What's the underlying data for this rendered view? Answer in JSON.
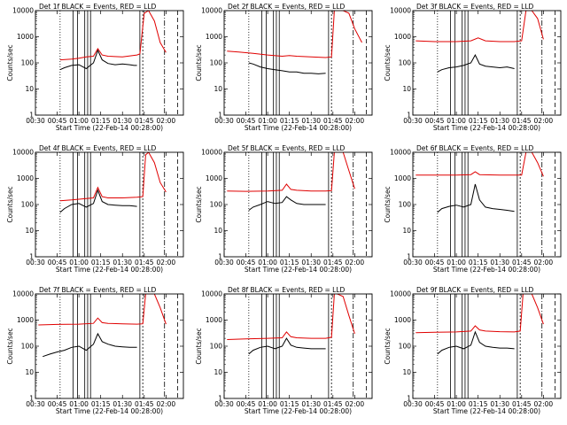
{
  "figure": {
    "colors": {
      "events": "#000000",
      "lld": "#e00000",
      "background": "#ffffff",
      "axes": "#000000"
    }
  },
  "chart_data": [
    {
      "type": "line",
      "title": "Det 1f BLACK = Events, RED = LLD",
      "xlabel": "Start Time (22-Feb-14 00:28:00)",
      "ylabel": "Counts/sec",
      "yscale": "log",
      "ylim": [
        1,
        10000
      ],
      "xlim": [
        "00:30",
        "02:12"
      ],
      "xticks": [
        "00:30",
        "00:45",
        "01:00",
        "01:15",
        "01:30",
        "01:45",
        "02:00"
      ],
      "yticks": [
        "1",
        "10",
        "100",
        "1000",
        "10000"
      ],
      "series": [
        {
          "name": "Events",
          "x": [
            "00:47",
            "00:50",
            "00:55",
            "01:00",
            "01:05",
            "01:10",
            "01:13",
            "01:16",
            "01:20",
            "01:25",
            "01:30",
            "01:35",
            "01:38",
            "01:40"
          ],
          "y": [
            55,
            65,
            80,
            85,
            60,
            100,
            300,
            130,
            95,
            85,
            90,
            85,
            80,
            80
          ]
        },
        {
          "name": "LLD",
          "x": [
            "00:47",
            "00:55",
            "01:00",
            "01:05",
            "01:10",
            "01:13",
            "01:16",
            "01:20",
            "01:30",
            "01:40",
            "01:42",
            "01:45",
            "01:48",
            "01:52",
            "01:56",
            "02:00"
          ],
          "y": [
            130,
            140,
            150,
            170,
            180,
            350,
            200,
            180,
            170,
            200,
            220,
            8000,
            10000,
            4000,
            600,
            250
          ]
        }
      ]
    },
    {
      "type": "line",
      "title": "Det 2f BLACK = Events, RED = LLD",
      "xlabel": "Start Time (22-Feb-14 00:28:00)",
      "ylabel": "Counts/sec",
      "yscale": "log",
      "ylim": [
        1,
        10000
      ],
      "xlim": [
        "00:30",
        "02:12"
      ],
      "xticks": [
        "00:30",
        "00:45",
        "01:00",
        "01:15",
        "01:30",
        "01:45",
        "02:00"
      ],
      "yticks": [
        "1",
        "10",
        "100",
        "1000",
        "10000"
      ],
      "series": [
        {
          "name": "Events",
          "x": [
            "00:47",
            "00:50",
            "00:55",
            "01:00",
            "01:05",
            "01:10",
            "01:15",
            "01:20",
            "01:25",
            "01:30",
            "01:35",
            "01:40"
          ],
          "y": [
            100,
            90,
            70,
            60,
            55,
            50,
            45,
            45,
            40,
            40,
            38,
            40
          ]
        },
        {
          "name": "LLD",
          "x": [
            "00:32",
            "00:40",
            "00:50",
            "01:00",
            "01:10",
            "01:15",
            "01:20",
            "01:30",
            "01:40",
            "01:44",
            "01:46",
            "01:48",
            "01:52",
            "01:56",
            "02:00",
            "02:05"
          ],
          "y": [
            280,
            260,
            230,
            200,
            180,
            190,
            180,
            170,
            160,
            170,
            10000,
            10000,
            10000,
            8000,
            2000,
            600
          ]
        }
      ]
    },
    {
      "type": "line",
      "title": "Det 3f BLACK = Events, RED = LLD",
      "xlabel": "Start Time (22-Feb-14 00:28:00)",
      "ylabel": "Counts/sec",
      "yscale": "log",
      "ylim": [
        1,
        10000
      ],
      "xlim": [
        "00:30",
        "02:12"
      ],
      "xticks": [
        "00:30",
        "00:45",
        "01:00",
        "01:15",
        "01:30",
        "01:45",
        "02:00"
      ],
      "yticks": [
        "1",
        "10",
        "100",
        "1000",
        "10000"
      ],
      "series": [
        {
          "name": "Events",
          "x": [
            "00:47",
            "00:50",
            "00:55",
            "01:00",
            "01:05",
            "01:10",
            "01:13",
            "01:16",
            "01:20",
            "01:25",
            "01:30",
            "01:35",
            "01:40"
          ],
          "y": [
            45,
            55,
            65,
            70,
            80,
            100,
            200,
            90,
            75,
            70,
            65,
            70,
            60
          ]
        },
        {
          "name": "LLD",
          "x": [
            "00:32",
            "00:45",
            "01:00",
            "01:10",
            "01:15",
            "01:20",
            "01:30",
            "01:40",
            "01:45",
            "01:48",
            "01:52",
            "01:56",
            "02:00"
          ],
          "y": [
            700,
            650,
            650,
            700,
            900,
            700,
            650,
            650,
            700,
            10000,
            10000,
            5000,
            800
          ]
        }
      ]
    },
    {
      "type": "line",
      "title": "Det 4f BLACK = Events, RED = LLD",
      "xlabel": "Start Time (22-Feb-14 00:28:00)",
      "ylabel": "Counts/sec",
      "yscale": "log",
      "ylim": [
        1,
        10000
      ],
      "xlim": [
        "00:30",
        "02:12"
      ],
      "xticks": [
        "00:30",
        "00:45",
        "01:00",
        "01:15",
        "01:30",
        "01:45",
        "02:00"
      ],
      "yticks": [
        "1",
        "10",
        "100",
        "1000",
        "10000"
      ],
      "series": [
        {
          "name": "Events",
          "x": [
            "00:47",
            "00:50",
            "00:55",
            "01:00",
            "01:05",
            "01:10",
            "01:13",
            "01:16",
            "01:20",
            "01:25",
            "01:30",
            "01:35",
            "01:40"
          ],
          "y": [
            50,
            70,
            100,
            110,
            80,
            110,
            350,
            130,
            100,
            95,
            90,
            90,
            85
          ]
        },
        {
          "name": "LLD",
          "x": [
            "00:47",
            "00:55",
            "01:00",
            "01:05",
            "01:10",
            "01:13",
            "01:16",
            "01:20",
            "01:30",
            "01:40",
            "01:44",
            "01:46",
            "01:48",
            "01:52",
            "01:56",
            "02:00"
          ],
          "y": [
            140,
            150,
            160,
            170,
            180,
            450,
            200,
            180,
            180,
            190,
            200,
            8000,
            10000,
            4000,
            700,
            300
          ]
        }
      ]
    },
    {
      "type": "line",
      "title": "Det 5f BLACK = Events, RED = LLD",
      "xlabel": "Start Time (22-Feb-14 00:28:00)",
      "ylabel": "Counts/sec",
      "yscale": "log",
      "ylim": [
        1,
        10000
      ],
      "xlim": [
        "00:30",
        "02:12"
      ],
      "xticks": [
        "00:30",
        "00:45",
        "01:00",
        "01:15",
        "01:30",
        "01:45",
        "02:00"
      ],
      "yticks": [
        "1",
        "10",
        "100",
        "1000",
        "10000"
      ],
      "series": [
        {
          "name": "Events",
          "x": [
            "00:47",
            "00:50",
            "00:55",
            "01:00",
            "01:05",
            "01:10",
            "01:13",
            "01:16",
            "01:20",
            "01:25",
            "01:30",
            "01:35",
            "01:40"
          ],
          "y": [
            60,
            80,
            100,
            130,
            110,
            120,
            200,
            150,
            110,
            100,
            100,
            100,
            100
          ]
        },
        {
          "name": "LLD",
          "x": [
            "00:32",
            "00:45",
            "01:00",
            "01:10",
            "01:13",
            "01:16",
            "01:20",
            "01:30",
            "01:40",
            "01:44",
            "01:46",
            "01:48",
            "01:52",
            "01:56",
            "02:00"
          ],
          "y": [
            330,
            320,
            330,
            350,
            600,
            380,
            350,
            330,
            330,
            340,
            10000,
            10000,
            10000,
            2000,
            400
          ]
        }
      ]
    },
    {
      "type": "line",
      "title": "Det 6f BLACK = Events, RED = LLD",
      "xlabel": "Start Time (22-Feb-14 00:28:00)",
      "ylabel": "Counts/sec",
      "yscale": "log",
      "ylim": [
        1,
        10000
      ],
      "xlim": [
        "00:30",
        "02:12"
      ],
      "xticks": [
        "00:30",
        "00:45",
        "01:00",
        "01:15",
        "01:30",
        "01:45",
        "02:00"
      ],
      "yticks": [
        "1",
        "10",
        "100",
        "1000",
        "10000"
      ],
      "series": [
        {
          "name": "Events",
          "x": [
            "00:47",
            "00:50",
            "00:55",
            "01:00",
            "01:05",
            "01:10",
            "01:13",
            "01:16",
            "01:20",
            "01:25",
            "01:30",
            "01:35",
            "01:40"
          ],
          "y": [
            50,
            70,
            85,
            95,
            80,
            100,
            600,
            150,
            80,
            70,
            65,
            60,
            55
          ]
        },
        {
          "name": "LLD",
          "x": [
            "00:32",
            "00:45",
            "01:00",
            "01:10",
            "01:13",
            "01:16",
            "01:30",
            "01:40",
            "01:45",
            "01:48",
            "01:52",
            "01:56",
            "02:00"
          ],
          "y": [
            1350,
            1350,
            1350,
            1400,
            1800,
            1400,
            1350,
            1350,
            1350,
            10000,
            10000,
            4000,
            1200
          ]
        }
      ]
    },
    {
      "type": "line",
      "title": "Det 7f BLACK = Events, RED = LLD",
      "xlabel": "Start Time (22-Feb-14 00:28:00)",
      "ylabel": "Counts/sec",
      "yscale": "log",
      "ylim": [
        1,
        10000
      ],
      "xlim": [
        "00:30",
        "02:12"
      ],
      "xticks": [
        "00:30",
        "00:45",
        "01:00",
        "01:15",
        "01:30",
        "01:45",
        "02:00"
      ],
      "yticks": [
        "1",
        "10",
        "100",
        "1000",
        "10000"
      ],
      "series": [
        {
          "name": "Events",
          "x": [
            "00:35",
            "00:40",
            "00:45",
            "00:50",
            "00:55",
            "01:00",
            "01:05",
            "01:10",
            "01:13",
            "01:16",
            "01:20",
            "01:25",
            "01:30",
            "01:35",
            "01:40"
          ],
          "y": [
            40,
            50,
            60,
            70,
            90,
            100,
            70,
            120,
            300,
            150,
            120,
            100,
            95,
            90,
            90
          ]
        },
        {
          "name": "LLD",
          "x": [
            "00:32",
            "00:45",
            "01:00",
            "01:10",
            "01:13",
            "01:16",
            "01:20",
            "01:30",
            "01:40",
            "01:44",
            "01:46",
            "01:48",
            "01:52",
            "01:56",
            "02:00"
          ],
          "y": [
            650,
            680,
            700,
            750,
            1200,
            800,
            750,
            720,
            700,
            720,
            10000,
            10000,
            10000,
            3000,
            700
          ]
        }
      ]
    },
    {
      "type": "line",
      "title": "Det 8f BLACK = Events, RED = LLD",
      "xlabel": "Start Time (22-Feb-14 00:28:00)",
      "ylabel": "Counts/sec",
      "yscale": "log",
      "ylim": [
        1,
        10000
      ],
      "xlim": [
        "00:30",
        "02:12"
      ],
      "xticks": [
        "00:30",
        "00:45",
        "01:00",
        "01:15",
        "01:30",
        "01:45",
        "02:00"
      ],
      "yticks": [
        "1",
        "10",
        "100",
        "1000",
        "10000"
      ],
      "series": [
        {
          "name": "Events",
          "x": [
            "00:47",
            "00:50",
            "00:55",
            "01:00",
            "01:05",
            "01:10",
            "01:13",
            "01:16",
            "01:20",
            "01:25",
            "01:30",
            "01:35",
            "01:40"
          ],
          "y": [
            50,
            70,
            90,
            100,
            80,
            100,
            200,
            110,
            90,
            85,
            80,
            80,
            80
          ]
        },
        {
          "name": "LLD",
          "x": [
            "00:32",
            "00:45",
            "01:00",
            "01:10",
            "01:13",
            "01:16",
            "01:20",
            "01:30",
            "01:40",
            "01:44",
            "01:46",
            "01:48",
            "01:52",
            "01:56",
            "02:00"
          ],
          "y": [
            180,
            190,
            200,
            210,
            350,
            230,
            210,
            200,
            200,
            220,
            10000,
            10000,
            8000,
            1500,
            300
          ]
        }
      ]
    },
    {
      "type": "line",
      "title": "Det 9f BLACK = Events, RED = LLD",
      "xlabel": "Start Time (22-Feb-14 00:28:00)",
      "ylabel": "Counts/sec",
      "yscale": "log",
      "ylim": [
        1,
        10000
      ],
      "xlim": [
        "00:30",
        "02:12"
      ],
      "xticks": [
        "00:30",
        "00:45",
        "01:00",
        "01:15",
        "01:30",
        "01:45",
        "02:00"
      ],
      "yticks": [
        "1",
        "10",
        "100",
        "1000",
        "10000"
      ],
      "series": [
        {
          "name": "Events",
          "x": [
            "00:47",
            "00:50",
            "00:55",
            "01:00",
            "01:05",
            "01:10",
            "01:13",
            "01:16",
            "01:20",
            "01:25",
            "01:30",
            "01:35",
            "01:40"
          ],
          "y": [
            50,
            70,
            90,
            100,
            80,
            110,
            350,
            140,
            100,
            90,
            85,
            85,
            80
          ]
        },
        {
          "name": "LLD",
          "x": [
            "00:32",
            "00:45",
            "01:00",
            "01:10",
            "01:13",
            "01:16",
            "01:20",
            "01:30",
            "01:40",
            "01:44",
            "01:46",
            "01:48",
            "01:52",
            "01:56",
            "02:00"
          ],
          "y": [
            330,
            340,
            350,
            380,
            600,
            420,
            380,
            360,
            350,
            380,
            10000,
            10000,
            10000,
            3000,
            700
          ]
        }
      ]
    }
  ]
}
